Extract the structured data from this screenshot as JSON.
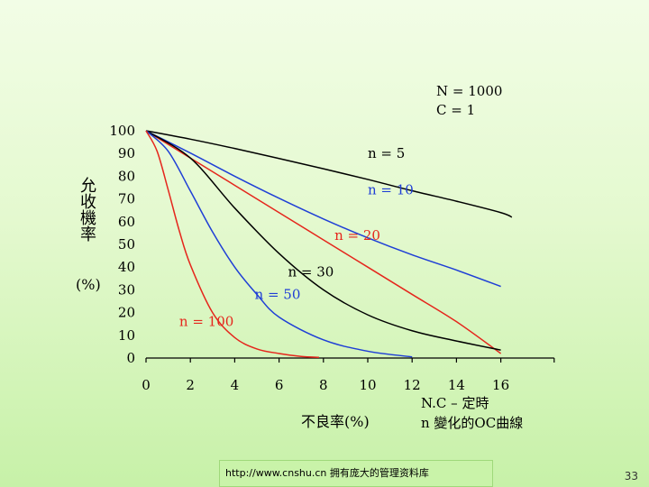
{
  "chart_data": {
    "type": "line",
    "params": [
      "N = 1000",
      "C = 1"
    ],
    "ylabel_main": "允收機率",
    "ylabel_unit": "(%)",
    "xlabel": "不良率(%)",
    "caption": [
      "N.C – 定時",
      "n 變化的OC曲線"
    ],
    "xlim": [
      0,
      18
    ],
    "ylim": [
      0,
      100
    ],
    "x_ticks": [
      0,
      2,
      4,
      6,
      8,
      10,
      12,
      14,
      16
    ],
    "y_ticks": [
      0,
      10,
      20,
      30,
      40,
      50,
      60,
      70,
      80,
      90,
      100
    ],
    "series": [
      {
        "name": "n = 5",
        "color": "#000000",
        "x": [
          0,
          2,
          4,
          6,
          8,
          10,
          12,
          14,
          16,
          16.5
        ],
        "y": [
          100,
          96.3,
          92.2,
          87.8,
          83.3,
          78.6,
          73.6,
          69.0,
          64.0,
          62.0
        ]
      },
      {
        "name": "n = 10",
        "color": "#1f3fd6",
        "x": [
          0,
          2,
          4,
          6,
          8,
          10,
          12,
          14,
          16
        ],
        "y": [
          100,
          90.2,
          80.0,
          70.3,
          61.2,
          52.9,
          45.4,
          38.7,
          31.5
        ]
      },
      {
        "name": "n = 20",
        "color": "#e5261c",
        "x": [
          0,
          2,
          4,
          6,
          8,
          10,
          12,
          14,
          16
        ],
        "y": [
          100,
          88.0,
          76.0,
          64.0,
          52.0,
          40.0,
          28.0,
          16.0,
          2.0
        ]
      },
      {
        "name": "n = 30",
        "color": "#000000",
        "x": [
          0,
          2,
          4,
          6,
          8,
          10,
          12,
          14,
          16
        ],
        "y": [
          100,
          88.0,
          66.0,
          46.0,
          30.0,
          19.0,
          12.0,
          7.5,
          3.5
        ]
      },
      {
        "name": "n = 50",
        "color": "#1f3fd6",
        "x": [
          0,
          1,
          2,
          3,
          4,
          5,
          6,
          8,
          10,
          12
        ],
        "y": [
          100,
          91.0,
          73.5,
          55.5,
          40.0,
          28.0,
          18.0,
          8.0,
          3.0,
          0.5
        ]
      },
      {
        "name": "n = 100",
        "color": "#e5261c",
        "x": [
          0,
          0.5,
          1,
          1.5,
          2,
          3,
          4,
          5,
          6,
          7,
          7.8
        ],
        "y": [
          100,
          91.0,
          74.0,
          56.0,
          41.0,
          20.0,
          9.0,
          4.0,
          2.0,
          0.7,
          0.3
        ]
      }
    ],
    "labels": [
      {
        "text": "n = 5",
        "x": 10,
        "y": 88
      },
      {
        "text": "n = 10",
        "x": 10,
        "y": 72
      },
      {
        "text": "n = 20",
        "x": 8.5,
        "y": 52
      },
      {
        "text": "n = 30",
        "x": 6.4,
        "y": 36
      },
      {
        "text": "n = 50",
        "x": 4.9,
        "y": 26
      },
      {
        "text": "n = 100",
        "x": 1.5,
        "y": 14
      }
    ]
  },
  "footer": {
    "text": "http://www.cnshu.cn 拥有庞大的管理资料库"
  },
  "page_number": "33"
}
